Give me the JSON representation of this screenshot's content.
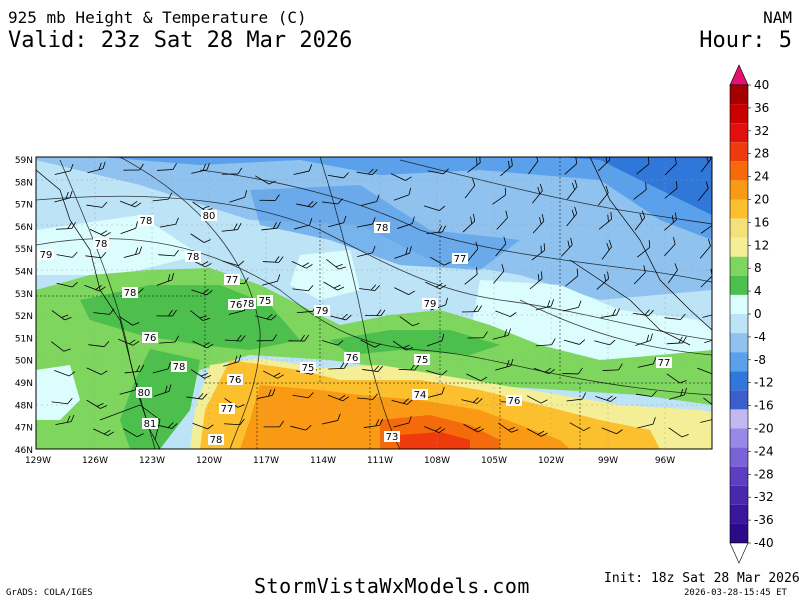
{
  "header": {
    "title": "925 mb Height & Temperature (C)",
    "valid": "Valid: 23z Sat 28 Mar 2026",
    "model": "NAM",
    "hour": "Hour: 5"
  },
  "footer": {
    "site": "StormVistaWxModels.com",
    "credit": "GrADS: COLA/IGES",
    "init": "Init: 18z Sat 28 Mar 2026",
    "timestamp": "2026-03-28-15:45 ET"
  },
  "map": {
    "lat_labels": [
      "59N",
      "58N",
      "57N",
      "56N",
      "55N",
      "54N",
      "53N",
      "52N",
      "51N",
      "50N",
      "49N",
      "48N",
      "47N",
      "46N"
    ],
    "lon_labels": [
      "129W",
      "126W",
      "123W",
      "120W",
      "117W",
      "114W",
      "111W",
      "108W",
      "105W",
      "102W",
      "99W",
      "96W"
    ],
    "height_labels": [
      "78",
      "80",
      "78",
      "78",
      "79",
      "78",
      "77",
      "78",
      "75",
      "79",
      "78",
      "77",
      "76",
      "78",
      "81",
      "80",
      "79",
      "76",
      "77",
      "78",
      "75",
      "76",
      "75",
      "74",
      "73",
      "76",
      "77",
      "76"
    ]
  },
  "colorbar": {
    "labels": [
      "40",
      "36",
      "32",
      "28",
      "24",
      "20",
      "16",
      "12",
      "8",
      "4",
      "0",
      "-4",
      "-8",
      "-12",
      "-16",
      "-20",
      "-24",
      "-28",
      "-32",
      "-36",
      "-40"
    ],
    "colors": [
      "#e3116f",
      "#a50000",
      "#c80000",
      "#e01010",
      "#ee3a0c",
      "#f56a0a",
      "#fa9a14",
      "#fcbf2e",
      "#f5e07a",
      "#f4ef96",
      "#7ed65e",
      "#4cbf4c",
      "#dcfdfd",
      "#bce3f6",
      "#8fc2ef",
      "#5aa0ea",
      "#3077da",
      "#3a5fcc",
      "#c4b8f0",
      "#9a88e8",
      "#7a62d9",
      "#5c3ec2",
      "#4a28ae",
      "#3a169c",
      "#2c0a8a",
      "#1a0070"
    ]
  }
}
